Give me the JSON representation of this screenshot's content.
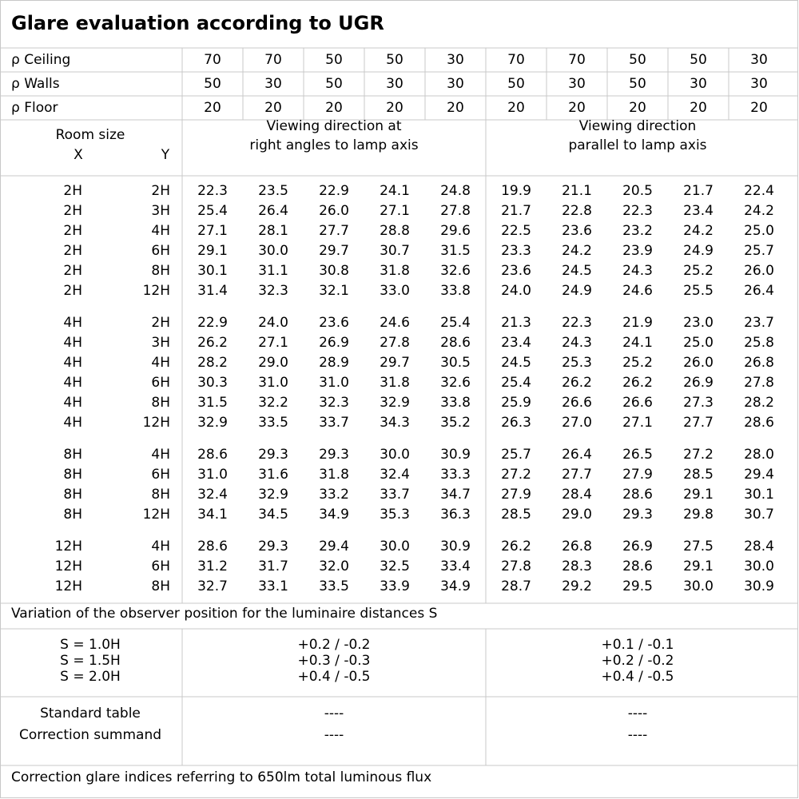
{
  "title": "Glare evaluation according to UGR",
  "reflectance_rows": [
    {
      "label": "ρ Ceiling",
      "values": [
        "70",
        "70",
        "50",
        "50",
        "30",
        "70",
        "70",
        "50",
        "50",
        "30"
      ]
    },
    {
      "label": "ρ Walls",
      "values": [
        "50",
        "30",
        "50",
        "30",
        "30",
        "50",
        "30",
        "50",
        "30",
        "30"
      ]
    },
    {
      "label": "ρ Floor",
      "values": [
        "20",
        "20",
        "20",
        "20",
        "20",
        "20",
        "20",
        "20",
        "20",
        "20"
      ]
    }
  ],
  "room_size_header": {
    "label": "Room size",
    "x": "X",
    "y": "Y"
  },
  "viewing_directions": [
    [
      "Viewing direction at",
      "right angles to lamp axis"
    ],
    [
      "Viewing direction",
      "parallel to lamp axis"
    ]
  ],
  "room_groups": [
    [
      {
        "x": "2H",
        "y": "2H",
        "values": [
          "22.3",
          "23.5",
          "22.9",
          "24.1",
          "24.8",
          "19.9",
          "21.1",
          "20.5",
          "21.7",
          "22.4"
        ]
      },
      {
        "x": "2H",
        "y": "3H",
        "values": [
          "25.4",
          "26.4",
          "26.0",
          "27.1",
          "27.8",
          "21.7",
          "22.8",
          "22.3",
          "23.4",
          "24.2"
        ]
      },
      {
        "x": "2H",
        "y": "4H",
        "values": [
          "27.1",
          "28.1",
          "27.7",
          "28.8",
          "29.6",
          "22.5",
          "23.6",
          "23.2",
          "24.2",
          "25.0"
        ]
      },
      {
        "x": "2H",
        "y": "6H",
        "values": [
          "29.1",
          "30.0",
          "29.7",
          "30.7",
          "31.5",
          "23.3",
          "24.2",
          "23.9",
          "24.9",
          "25.7"
        ]
      },
      {
        "x": "2H",
        "y": "8H",
        "values": [
          "30.1",
          "31.1",
          "30.8",
          "31.8",
          "32.6",
          "23.6",
          "24.5",
          "24.3",
          "25.2",
          "26.0"
        ]
      },
      {
        "x": "2H",
        "y": "12H",
        "values": [
          "31.4",
          "32.3",
          "32.1",
          "33.0",
          "33.8",
          "24.0",
          "24.9",
          "24.6",
          "25.5",
          "26.4"
        ]
      }
    ],
    [
      {
        "x": "4H",
        "y": "2H",
        "values": [
          "22.9",
          "24.0",
          "23.6",
          "24.6",
          "25.4",
          "21.3",
          "22.3",
          "21.9",
          "23.0",
          "23.7"
        ]
      },
      {
        "x": "4H",
        "y": "3H",
        "values": [
          "26.2",
          "27.1",
          "26.9",
          "27.8",
          "28.6",
          "23.4",
          "24.3",
          "24.1",
          "25.0",
          "25.8"
        ]
      },
      {
        "x": "4H",
        "y": "4H",
        "values": [
          "28.2",
          "29.0",
          "28.9",
          "29.7",
          "30.5",
          "24.5",
          "25.3",
          "25.2",
          "26.0",
          "26.8"
        ]
      },
      {
        "x": "4H",
        "y": "6H",
        "values": [
          "30.3",
          "31.0",
          "31.0",
          "31.8",
          "32.6",
          "25.4",
          "26.2",
          "26.2",
          "26.9",
          "27.8"
        ]
      },
      {
        "x": "4H",
        "y": "8H",
        "values": [
          "31.5",
          "32.2",
          "32.3",
          "32.9",
          "33.8",
          "25.9",
          "26.6",
          "26.6",
          "27.3",
          "28.2"
        ]
      },
      {
        "x": "4H",
        "y": "12H",
        "values": [
          "32.9",
          "33.5",
          "33.7",
          "34.3",
          "35.2",
          "26.3",
          "27.0",
          "27.1",
          "27.7",
          "28.6"
        ]
      }
    ],
    [
      {
        "x": "8H",
        "y": "4H",
        "values": [
          "28.6",
          "29.3",
          "29.3",
          "30.0",
          "30.9",
          "25.7",
          "26.4",
          "26.5",
          "27.2",
          "28.0"
        ]
      },
      {
        "x": "8H",
        "y": "6H",
        "values": [
          "31.0",
          "31.6",
          "31.8",
          "32.4",
          "33.3",
          "27.2",
          "27.7",
          "27.9",
          "28.5",
          "29.4"
        ]
      },
      {
        "x": "8H",
        "y": "8H",
        "values": [
          "32.4",
          "32.9",
          "33.2",
          "33.7",
          "34.7",
          "27.9",
          "28.4",
          "28.6",
          "29.1",
          "30.1"
        ]
      },
      {
        "x": "8H",
        "y": "12H",
        "values": [
          "34.1",
          "34.5",
          "34.9",
          "35.3",
          "36.3",
          "28.5",
          "29.0",
          "29.3",
          "29.8",
          "30.7"
        ]
      }
    ],
    [
      {
        "x": "12H",
        "y": "4H",
        "values": [
          "28.6",
          "29.3",
          "29.4",
          "30.0",
          "30.9",
          "26.2",
          "26.8",
          "26.9",
          "27.5",
          "28.4"
        ]
      },
      {
        "x": "12H",
        "y": "6H",
        "values": [
          "31.2",
          "31.7",
          "32.0",
          "32.5",
          "33.4",
          "27.8",
          "28.3",
          "28.6",
          "29.1",
          "30.0"
        ]
      },
      {
        "x": "12H",
        "y": "8H",
        "values": [
          "32.7",
          "33.1",
          "33.5",
          "33.9",
          "34.9",
          "28.7",
          "29.2",
          "29.5",
          "30.0",
          "30.9"
        ]
      }
    ]
  ],
  "variation": {
    "title": "Variation of the observer position for the luminaire distances S",
    "rows": [
      {
        "label": "S = 1.0H",
        "values": [
          "+0.2 / -0.2",
          "+0.1 / -0.1"
        ]
      },
      {
        "label": "S = 1.5H",
        "values": [
          "+0.3 / -0.3",
          "+0.2 / -0.2"
        ]
      },
      {
        "label": "S = 2.0H",
        "values": [
          "+0.4 / -0.5",
          "+0.4 / -0.5"
        ]
      }
    ]
  },
  "corrections": {
    "rows": [
      {
        "label": "Standard table",
        "values": [
          "----",
          "----"
        ]
      },
      {
        "label": "Correction summand",
        "values": [
          "----",
          "----"
        ]
      }
    ]
  },
  "footer": "Correction glare indices referring to 650lm total luminous flux"
}
